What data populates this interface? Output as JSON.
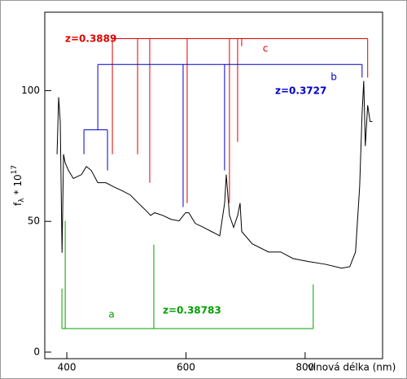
{
  "chart_data": {
    "type": "line",
    "x_label": "vlnová délka (nm)",
    "y_label": {
      "base": "f",
      "sub": "λ",
      "mid": "* 10",
      "sup": "17"
    },
    "xlim": [
      363,
      930
    ],
    "ylim": [
      -2.5,
      130
    ],
    "xticks": [
      400,
      600,
      800
    ],
    "yticks": [
      0,
      50,
      100
    ],
    "series": [
      {
        "color": "#000000",
        "x": [
          383.6,
          386.3,
          389,
          392,
          394.5,
          397,
          402.7,
          411,
          424.6,
          432.8,
          441,
          452,
          465.5,
          479,
          493,
          506.5,
          520,
          534,
          540.6,
          547.4,
          561,
          574.7,
          588.4,
          599.3,
          604.8,
          615.7,
          629.4,
          643,
          656.7,
          664.9,
          667.6,
          673,
          680,
          686.8,
          690.8,
          693.6,
          711.3,
          738.6,
          759,
          779.5,
          806.8,
          834,
          861.4,
          875,
          884.6,
          891.5,
          895.6,
          898.4,
          901,
          905,
          909,
          913
        ],
        "values": [
          75.7,
          97.5,
          88,
          38,
          75.7,
          72.6,
          69.5,
          66.4,
          67.9,
          71,
          69.5,
          64.8,
          64.8,
          63.2,
          61.7,
          60.1,
          57,
          53.9,
          52.3,
          53.3,
          52.3,
          50.8,
          50.2,
          53.3,
          53.3,
          49.2,
          47.7,
          46.1,
          44.5,
          57,
          67.9,
          52.3,
          47.7,
          52.3,
          57,
          46.1,
          41.4,
          38.3,
          38.3,
          35.8,
          34.6,
          33.6,
          32.1,
          32.7,
          38.3,
          63.2,
          91.3,
          103.7,
          78.8,
          94.4,
          88.2,
          88.2
        ]
      }
    ],
    "systems": [
      {
        "name": "c",
        "z_label": "z=0.3889",
        "color": "#e00000",
        "bar": 119.9,
        "lines": [
          {
            "x": 476.5,
            "tip": 75.7
          },
          {
            "x": 518.8,
            "tip": 75.7
          },
          {
            "x": 539.2,
            "tip": 64.8
          },
          {
            "x": 602,
            "tip": 57
          },
          {
            "x": 673,
            "tip": 57
          },
          {
            "x": 686.7,
            "tip": 80.4
          },
          {
            "x": 693.5,
            "tip": 117
          },
          {
            "x": 905,
            "tip": 105
          }
        ]
      },
      {
        "name": "b",
        "z_label": "z=0.3727",
        "color": "#0000c8",
        "bar": 110,
        "lines": [
          {
            "x": 452,
            "tip": 85
          },
          {
            "x": 595.2,
            "tip": 55.5
          },
          {
            "x": 664.8,
            "tip": 69.5
          },
          {
            "x": 895.6,
            "tip": 105
          }
        ],
        "group": {
          "bar": 85,
          "lines": [
            {
              "x": 428.7,
              "tip": 75.7
            },
            {
              "x": 468.3,
              "tip": 69.5
            }
          ]
        }
      },
      {
        "name": "a",
        "z_label": "z=0.38783",
        "color": "#00a000",
        "bar": 9,
        "lines": [
          {
            "x": 391.8,
            "tip": 24.3
          },
          {
            "x": 397.3,
            "tip": 50.2
          },
          {
            "x": 546,
            "tip": 41.1
          },
          {
            "x": 813.6,
            "tip": 25.9
          }
        ]
      }
    ]
  }
}
